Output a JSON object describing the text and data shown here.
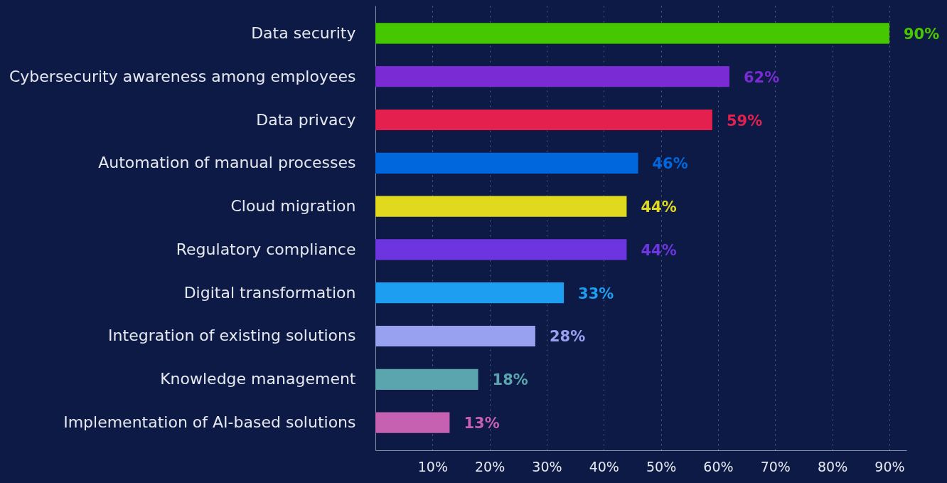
{
  "chart_data": {
    "type": "bar",
    "orientation": "horizontal",
    "categories": [
      "Data security",
      "Cybersecurity awareness among employees",
      "Data privacy",
      "Automation of manual processes",
      "Cloud migration",
      "Regulatory compliance",
      "Digital transformation",
      "Integration of existing solutions",
      "Knowledge management",
      "Implementation of AI-based solutions"
    ],
    "values": [
      90,
      62,
      59,
      46,
      44,
      44,
      33,
      28,
      18,
      13
    ],
    "value_labels": [
      "90%",
      "62%",
      "59%",
      "46%",
      "44%",
      "44%",
      "33%",
      "28%",
      "18%",
      "13%"
    ],
    "colors": [
      "#46c800",
      "#7a2bd4",
      "#e4204e",
      "#0068dc",
      "#e0d91e",
      "#6d35e0",
      "#1e9ef0",
      "#98a0f0",
      "#5aa5ae",
      "#c660b0"
    ],
    "xlim": [
      0,
      93
    ],
    "xticks": [
      {
        "value": 10,
        "label": "10%"
      },
      {
        "value": 20,
        "label": "20%"
      },
      {
        "value": 30,
        "label": "30%"
      },
      {
        "value": 40,
        "label": "40%"
      },
      {
        "value": 50,
        "label": "50%"
      },
      {
        "value": 60,
        "label": "60%"
      },
      {
        "value": 70,
        "label": "70%"
      },
      {
        "value": 80,
        "label": "80%"
      },
      {
        "value": 90,
        "label": "90%"
      }
    ],
    "grid": "x"
  }
}
